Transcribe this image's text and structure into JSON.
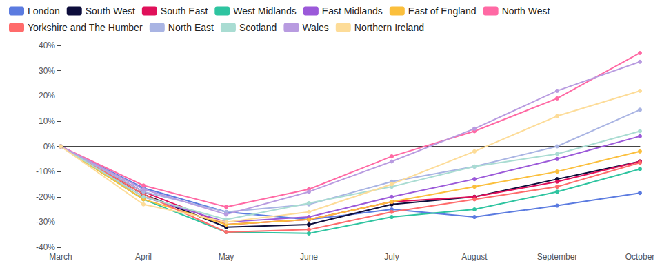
{
  "chart_data": {
    "type": "line",
    "categories": [
      "March",
      "April",
      "May",
      "June",
      "July",
      "August",
      "September",
      "October"
    ],
    "ylim": [
      -40,
      40
    ],
    "yticks": [
      {
        "value": -40,
        "label": "-40%"
      },
      {
        "value": -30,
        "label": "-30%"
      },
      {
        "value": -20,
        "label": "-20%"
      },
      {
        "value": -10,
        "label": "-10%"
      },
      {
        "value": 0,
        "label": "0%"
      },
      {
        "value": 10,
        "label": "10%"
      },
      {
        "value": 20,
        "label": "20%"
      },
      {
        "value": 30,
        "label": "30%"
      },
      {
        "value": 40,
        "label": "40%"
      }
    ],
    "grid": false,
    "legend": "top-left",
    "marker": "circle",
    "series": [
      {
        "name": "London",
        "color": "#5b7be0",
        "values": [
          0,
          -16.5,
          -26,
          -29,
          -25,
          -28,
          -23.5,
          -18.5
        ]
      },
      {
        "name": "South West",
        "color": "#0d0d3b",
        "values": [
          0,
          -19,
          -32,
          -31,
          -23,
          -20,
          -13,
          -6
        ]
      },
      {
        "name": "South East",
        "color": "#e0105a",
        "values": [
          0,
          -18,
          -31,
          -29,
          -22,
          -20,
          -14,
          -6
        ]
      },
      {
        "name": "West Midlands",
        "color": "#2ec4a0",
        "values": [
          0,
          -21,
          -34,
          -34.5,
          -28,
          -25,
          -18,
          -9
        ]
      },
      {
        "name": "East Midlands",
        "color": "#9b59d9",
        "values": [
          0,
          -20,
          -30,
          -28,
          -20,
          -13,
          -5,
          4
        ]
      },
      {
        "name": "East of England",
        "color": "#fbbf3c",
        "values": [
          0,
          -21,
          -31,
          -29,
          -22,
          -16,
          -10,
          -2
        ]
      },
      {
        "name": "North West",
        "color": "#ff69a4",
        "values": [
          0,
          -15.5,
          -24,
          -17,
          -4,
          6,
          19,
          37
        ]
      },
      {
        "name": "Yorkshire and The Humber",
        "color": "#ff6b6b",
        "values": [
          0,
          -19,
          -34,
          -33,
          -26,
          -21,
          -16,
          -6.5
        ]
      },
      {
        "name": "North East",
        "color": "#a9b4e3",
        "values": [
          0,
          -18,
          -26,
          -23,
          -14,
          -8,
          0,
          14.5
        ]
      },
      {
        "name": "Scotland",
        "color": "#a9dcd2",
        "values": [
          0,
          -20,
          -29,
          -22.5,
          -16,
          -8,
          -3,
          6
        ]
      },
      {
        "name": "Wales",
        "color": "#b89be0",
        "values": [
          0,
          -17,
          -27,
          -18,
          -6,
          7,
          22,
          33.5
        ]
      },
      {
        "name": "Northern Ireland",
        "color": "#fddc98",
        "values": [
          0,
          -23,
          -30,
          -26,
          -15,
          -2,
          12,
          22
        ]
      }
    ]
  }
}
